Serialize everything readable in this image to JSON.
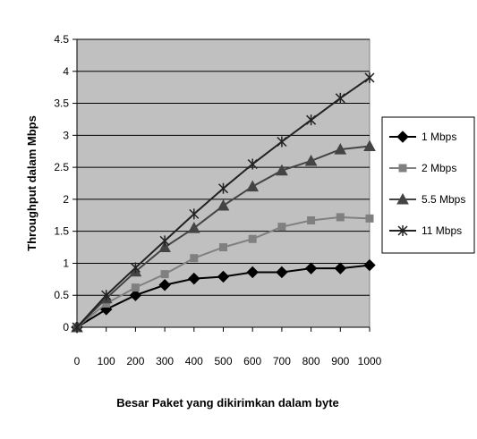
{
  "chart_data": {
    "type": "line",
    "title": "",
    "xlabel": "Besar Paket yang dikirimkan dalam byte",
    "ylabel": "Throughput dalam Mbps",
    "x": [
      0,
      100,
      200,
      300,
      400,
      500,
      600,
      700,
      800,
      900,
      1000
    ],
    "x_ticks": [
      "0",
      "100",
      "200",
      "300",
      "400",
      "500",
      "600",
      "700",
      "800",
      "900",
      "1000"
    ],
    "y_ticks": [
      "0",
      "0.5",
      "1",
      "1.5",
      "2",
      "2.5",
      "3",
      "3.5",
      "4",
      "4.5"
    ],
    "ylim": [
      0,
      4.5
    ],
    "xlim": [
      0,
      1000
    ],
    "grid": "horizontal major gridlines",
    "legend_position": "right",
    "colors": {
      "plot_background": "#c0c0c0",
      "gridline": "#000000",
      "page_background": "#ffffff"
    },
    "series": [
      {
        "name": "1 Mbps",
        "marker": "diamond",
        "color": "#000000",
        "values": [
          0,
          0.28,
          0.5,
          0.66,
          0.76,
          0.79,
          0.86,
          0.86,
          0.92,
          0.92,
          0.97
        ]
      },
      {
        "name": "2 Mbps",
        "marker": "square",
        "color": "#808080",
        "values": [
          0,
          0.37,
          0.62,
          0.83,
          1.08,
          1.25,
          1.38,
          1.57,
          1.67,
          1.72,
          1.7
        ]
      },
      {
        "name": "5.5 Mbps",
        "marker": "triangle",
        "color": "#444444",
        "values": [
          0,
          0.45,
          0.87,
          1.25,
          1.55,
          1.9,
          2.2,
          2.45,
          2.6,
          2.78,
          2.83
        ]
      },
      {
        "name": "11 Mbps",
        "marker": "star",
        "color": "#222222",
        "values": [
          0,
          0.5,
          0.93,
          1.35,
          1.77,
          2.17,
          2.55,
          2.9,
          3.24,
          3.58,
          3.9
        ]
      }
    ]
  }
}
